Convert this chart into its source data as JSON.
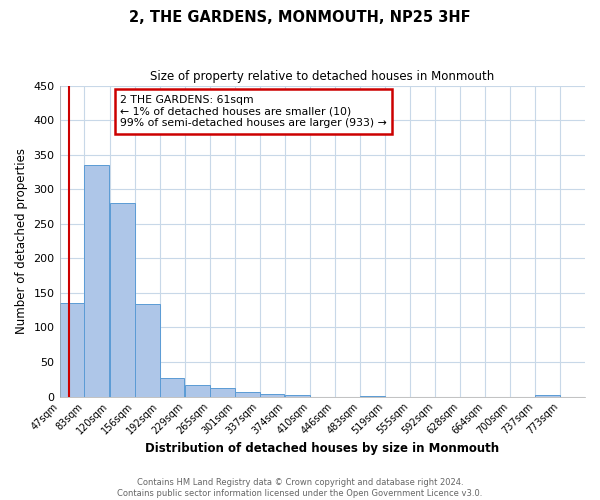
{
  "title": "2, THE GARDENS, MONMOUTH, NP25 3HF",
  "subtitle": "Size of property relative to detached houses in Monmouth",
  "xlabel": "Distribution of detached houses by size in Monmouth",
  "ylabel": "Number of detached properties",
  "bar_edges": [
    47,
    83,
    120,
    156,
    192,
    229,
    265,
    301,
    337,
    374,
    410,
    446,
    483,
    519,
    555,
    592,
    628,
    664,
    700,
    737,
    773
  ],
  "bar_heights": [
    136,
    335,
    280,
    134,
    27,
    17,
    12,
    7,
    4,
    2,
    0,
    0,
    1,
    0,
    0,
    0,
    0,
    0,
    0,
    2
  ],
  "bar_color": "#aec6e8",
  "bar_edge_color": "#5b9bd5",
  "annotation_line1": "2 THE GARDENS: 61sqm",
  "annotation_line2": "← 1% of detached houses are smaller (10)",
  "annotation_line3": "99% of semi-detached houses are larger (933) →",
  "annotation_box_color": "#cc0000",
  "property_line_x": 61,
  "ylim": [
    0,
    450
  ],
  "yticks": [
    0,
    50,
    100,
    150,
    200,
    250,
    300,
    350,
    400,
    450
  ],
  "tick_labels": [
    "47sqm",
    "83sqm",
    "120sqm",
    "156sqm",
    "192sqm",
    "229sqm",
    "265sqm",
    "301sqm",
    "337sqm",
    "374sqm",
    "410sqm",
    "446sqm",
    "483sqm",
    "519sqm",
    "555sqm",
    "592sqm",
    "628sqm",
    "664sqm",
    "700sqm",
    "737sqm",
    "773sqm"
  ],
  "footnote1": "Contains HM Land Registry data © Crown copyright and database right 2024.",
  "footnote2": "Contains public sector information licensed under the Open Government Licence v3.0.",
  "background_color": "#ffffff",
  "grid_color": "#c8d8e8"
}
